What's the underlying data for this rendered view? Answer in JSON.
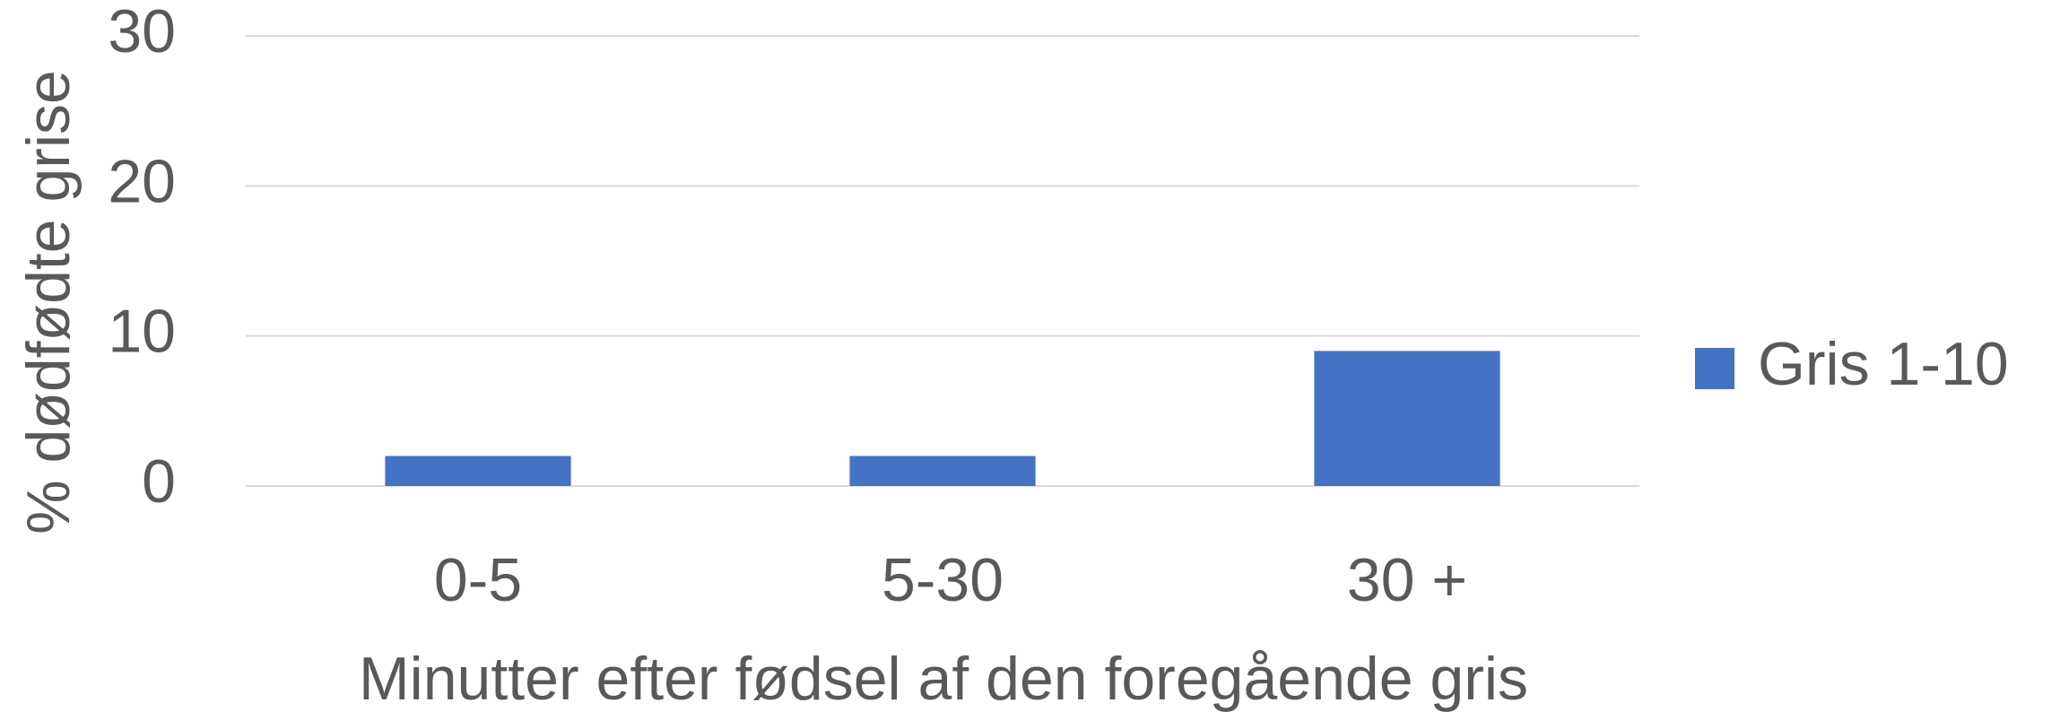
{
  "chart_data": {
    "type": "bar",
    "categories": [
      "0-5",
      "5-30",
      "30 +"
    ],
    "series": [
      {
        "name": "Gris 1-10",
        "color": "#4472c4",
        "values": [
          2,
          2,
          9
        ]
      }
    ],
    "x_label": "Minutter efter fødsel af den foregående gris",
    "y_label": "% dødfødte grise",
    "ylim": [
      0,
      30
    ],
    "yticks": [
      0,
      10,
      20,
      30
    ],
    "grid": true,
    "legend": "right"
  }
}
